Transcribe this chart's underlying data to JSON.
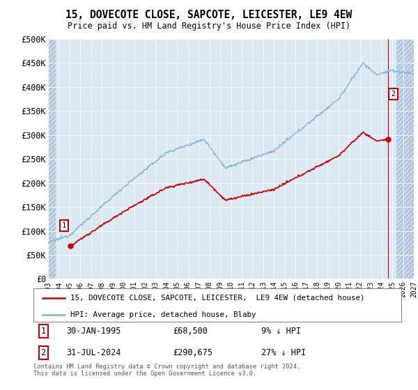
{
  "title": "15, DOVECOTE CLOSE, SAPCOTE, LEICESTER, LE9 4EW",
  "subtitle": "Price paid vs. HM Land Registry's House Price Index (HPI)",
  "ylim": [
    0,
    500000
  ],
  "yticks": [
    0,
    50000,
    100000,
    150000,
    200000,
    250000,
    300000,
    350000,
    400000,
    450000,
    500000
  ],
  "ytick_labels": [
    "£0",
    "£50K",
    "£100K",
    "£150K",
    "£200K",
    "£250K",
    "£300K",
    "£350K",
    "£400K",
    "£450K",
    "£500K"
  ],
  "background_color": "#dce9f5",
  "hatch_facecolor": "#c8d8ec",
  "grid_color": "#ffffff",
  "hpi_color": "#7ab8d9",
  "price_color": "#cc0000",
  "legend_label_price": "15, DOVECOTE CLOSE, SAPCOTE, LEICESTER,  LE9 4EW (detached house)",
  "legend_label_hpi": "HPI: Average price, detached house, Blaby",
  "annotation1_date": "30-JAN-1995",
  "annotation1_price": "£68,500",
  "annotation1_hpi": "9% ↓ HPI",
  "annotation2_date": "31-JUL-2024",
  "annotation2_price": "£290,675",
  "annotation2_hpi": "27% ↓ HPI",
  "footer": "Contains HM Land Registry data © Crown copyright and database right 2024.\nThis data is licensed under the Open Government Licence v3.0.",
  "point1_year": 1995.08,
  "point1_value": 68500,
  "point2_year": 2024.58,
  "point2_value": 290675,
  "xmin": 1993,
  "xmax": 2027,
  "hatch_left_end": 1993.7,
  "hatch_right_start": 2025.4
}
